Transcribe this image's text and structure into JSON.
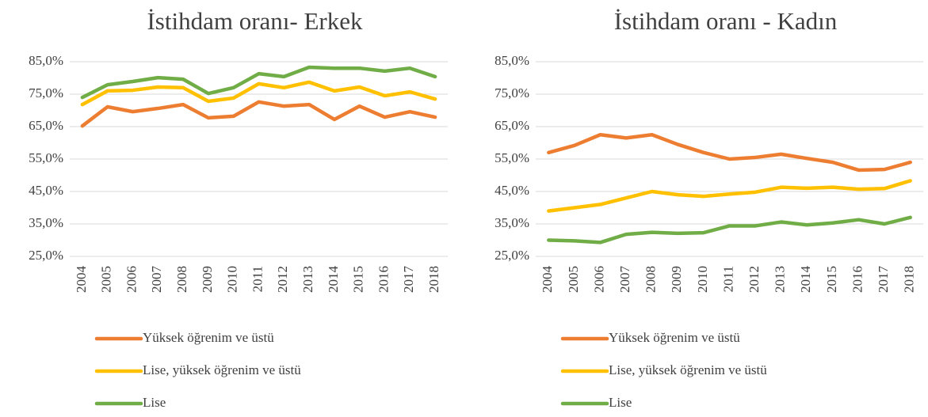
{
  "chart_data": [
    {
      "type": "line",
      "title": "İstihdam oranı- Erkek",
      "categories": [
        "2004",
        "2005",
        "2006",
        "2007",
        "2008",
        "2009",
        "2010",
        "2011",
        "2012",
        "2013",
        "2014",
        "2015",
        "2016",
        "2017",
        "2018"
      ],
      "series": [
        {
          "name": "Yüksek öğrenim ve üstü",
          "color": "#ed7d31",
          "values": [
            65.2,
            71.1,
            69.6,
            70.6,
            71.8,
            67.7,
            68.2,
            72.6,
            71.3,
            71.8,
            67.2,
            71.3,
            67.9,
            69.6,
            67.9
          ]
        },
        {
          "name": "Lise, yüksek öğrenim ve üstü",
          "color": "#ffc000",
          "values": [
            71.8,
            76,
            76.2,
            77.2,
            77,
            72.8,
            73.8,
            78.2,
            77,
            78.7,
            76,
            77.2,
            74.5,
            75.7,
            73.5
          ]
        },
        {
          "name": "Lise",
          "color": "#70ad47",
          "values": [
            74,
            77.9,
            78.9,
            80.1,
            79.6,
            75.2,
            77,
            81.3,
            80.4,
            83.3,
            83,
            83,
            82.1,
            83,
            80.4
          ]
        }
      ],
      "ylim": [
        25,
        85
      ],
      "yticks": [
        {
          "value": 25,
          "label": "25,0%"
        },
        {
          "value": 35,
          "label": "35,0%"
        },
        {
          "value": 45,
          "label": "45,0%"
        },
        {
          "value": 55,
          "label": "55,0%"
        },
        {
          "value": 65,
          "label": "65,0%"
        },
        {
          "value": 75,
          "label": "75,0%"
        },
        {
          "value": 85,
          "label": "85,0%"
        }
      ],
      "grid": true
    },
    {
      "type": "line",
      "title": "İstihdam oranı - Kadın",
      "categories": [
        "2004",
        "2005",
        "2006",
        "2007",
        "2008",
        "2009",
        "2010",
        "2011",
        "2012",
        "2013",
        "2014",
        "2015",
        "2016",
        "2017",
        "2018"
      ],
      "series": [
        {
          "name": "Yüksek öğrenim ve üstü",
          "color": "#ed7d31",
          "values": [
            57,
            59.2,
            62.5,
            61.5,
            62.5,
            59.5,
            57,
            55,
            55.5,
            56.5,
            55.2,
            54,
            51.6,
            51.8,
            54
          ]
        },
        {
          "name": "Lise, yüksek öğrenim ve üstü",
          "color": "#ffc000",
          "values": [
            39,
            40,
            41,
            43,
            45,
            44,
            43.5,
            44.2,
            44.8,
            46.3,
            46,
            46.3,
            45.7,
            45.9,
            48.3
          ]
        },
        {
          "name": "Lise",
          "color": "#70ad47",
          "values": [
            30,
            29.8,
            29.3,
            31.8,
            32.4,
            32.1,
            32.3,
            34.4,
            34.4,
            35.6,
            34.7,
            35.3,
            36.3,
            35,
            37
          ]
        }
      ],
      "ylim": [
        25,
        85
      ],
      "yticks": [
        {
          "value": 25,
          "label": "25,0%"
        },
        {
          "value": 35,
          "label": "35,0%"
        },
        {
          "value": 45,
          "label": "45,0%"
        },
        {
          "value": 55,
          "label": "55,0%"
        },
        {
          "value": 65,
          "label": "65,0%"
        },
        {
          "value": 75,
          "label": "75,0%"
        },
        {
          "value": 85,
          "label": "85,0%"
        }
      ],
      "grid": true
    }
  ]
}
